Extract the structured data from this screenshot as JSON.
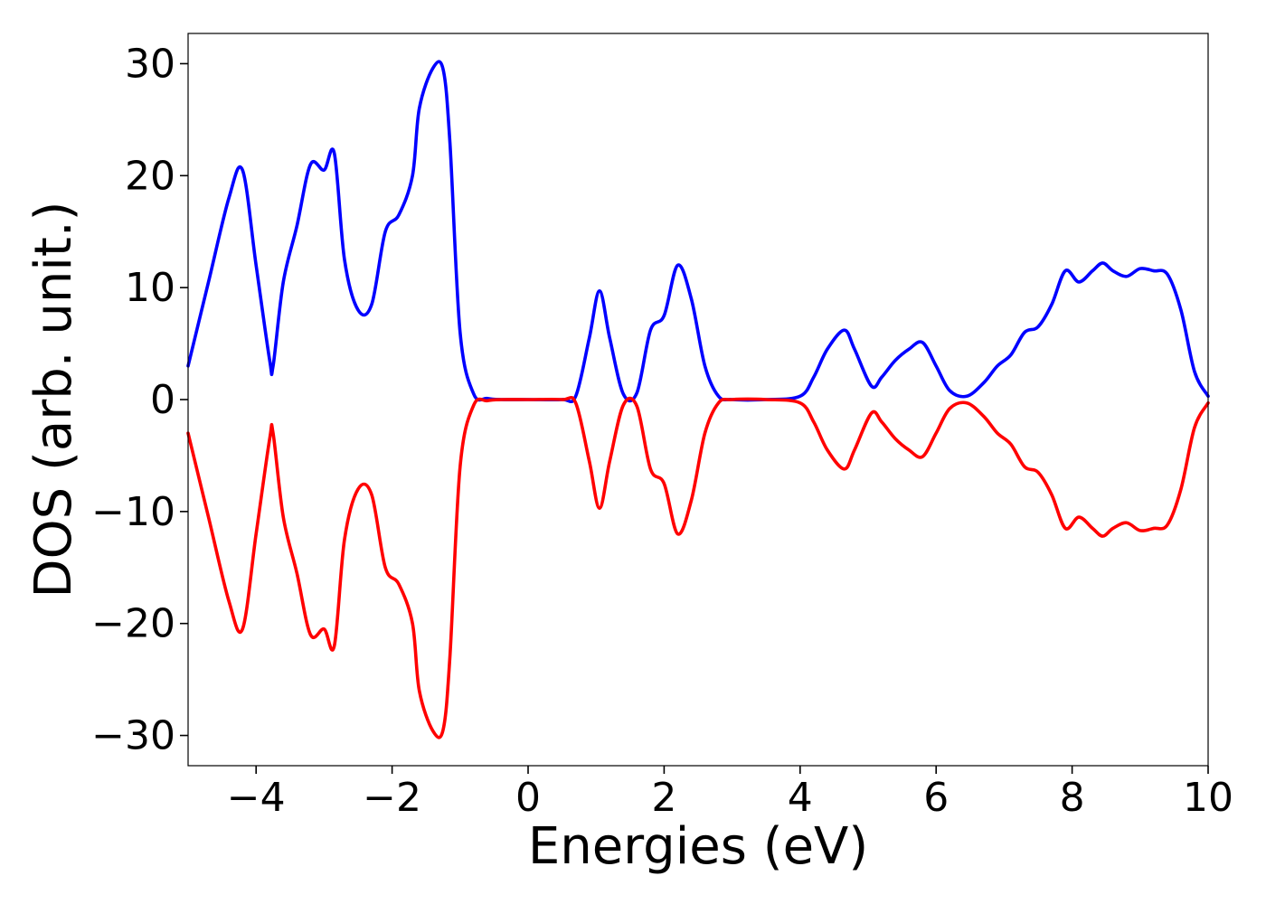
{
  "chart_data": {
    "type": "line",
    "title": "",
    "xlabel": "Energies (eV)",
    "ylabel": "DOS (arb. unit.)",
    "xlim": [
      -5,
      10
    ],
    "ylim": [
      -32.7,
      32.7
    ],
    "grid": false,
    "legend": "none",
    "x_ticks": [
      -4,
      -2,
      0,
      2,
      4,
      6,
      8,
      10
    ],
    "x_tick_labels": [
      "−4",
      "−2",
      "0",
      "2",
      "4",
      "6",
      "8",
      "10"
    ],
    "y_ticks": [
      30,
      20,
      10,
      0,
      -10,
      -20,
      -30
    ],
    "y_tick_labels": [
      "30",
      "20",
      "10",
      "0",
      "−10",
      "−20",
      "−30"
    ],
    "x": [
      -5.0,
      -4.7,
      -4.4,
      -4.2,
      -4.0,
      -3.8,
      -3.75,
      -3.6,
      -3.4,
      -3.2,
      -3.0,
      -2.85,
      -2.7,
      -2.5,
      -2.3,
      -2.1,
      -1.9,
      -1.7,
      -1.6,
      -1.4,
      -1.25,
      -1.15,
      -1.0,
      -0.8,
      -0.6,
      -0.4,
      0.0,
      0.5,
      0.7,
      0.9,
      1.05,
      1.2,
      1.4,
      1.6,
      1.8,
      2.0,
      2.2,
      2.4,
      2.6,
      2.8,
      3.0,
      3.5,
      4.0,
      4.2,
      4.4,
      4.65,
      4.8,
      5.05,
      5.2,
      5.4,
      5.6,
      5.8,
      6.0,
      6.2,
      6.45,
      6.7,
      6.9,
      7.1,
      7.3,
      7.5,
      7.7,
      7.9,
      8.1,
      8.3,
      8.45,
      8.6,
      8.8,
      9.0,
      9.2,
      9.4,
      9.6,
      9.8,
      10.0
    ],
    "series": [
      {
        "color": "#0000ff",
        "values": [
          3.0,
          10.5,
          18.0,
          20.5,
          12.0,
          3.5,
          3.0,
          10.5,
          15.5,
          21.0,
          20.5,
          22.0,
          12.5,
          8.0,
          8.5,
          15.0,
          16.5,
          20.0,
          26.0,
          29.6,
          29.5,
          23.0,
          6.0,
          0.5,
          0.1,
          0.0,
          0.0,
          0.0,
          0.3,
          5.5,
          9.7,
          5.5,
          0.5,
          0.6,
          6.2,
          7.5,
          12.0,
          9.0,
          3.0,
          0.3,
          0.0,
          0.0,
          0.3,
          2.0,
          4.5,
          6.2,
          4.5,
          1.2,
          2.0,
          3.5,
          4.5,
          5.1,
          3.0,
          0.8,
          0.3,
          1.5,
          3.0,
          4.0,
          6.0,
          6.5,
          8.5,
          11.5,
          10.5,
          11.5,
          12.2,
          11.5,
          11.0,
          11.7,
          11.5,
          11.2,
          8.0,
          2.5,
          0.3
        ]
      },
      {
        "color": "#ff0000",
        "values": [
          -3.0,
          -10.5,
          -18.0,
          -20.5,
          -12.0,
          -3.5,
          -3.0,
          -10.5,
          -15.5,
          -21.0,
          -20.5,
          -22.0,
          -12.5,
          -8.0,
          -8.5,
          -15.0,
          -16.5,
          -20.0,
          -26.0,
          -29.6,
          -29.5,
          -23.0,
          -6.0,
          -0.5,
          -0.1,
          0.0,
          0.0,
          0.0,
          -0.3,
          -5.5,
          -9.7,
          -5.5,
          -0.5,
          -0.6,
          -6.2,
          -7.5,
          -12.0,
          -9.0,
          -3.0,
          -0.3,
          0.0,
          0.0,
          -0.3,
          -2.0,
          -4.5,
          -6.2,
          -4.5,
          -1.2,
          -2.0,
          -3.5,
          -4.5,
          -5.1,
          -3.0,
          -0.8,
          -0.3,
          -1.5,
          -3.0,
          -4.0,
          -6.0,
          -6.5,
          -8.5,
          -11.5,
          -10.5,
          -11.5,
          -12.2,
          -11.5,
          -11.0,
          -11.7,
          -11.5,
          -11.2,
          -8.0,
          -2.5,
          -0.3
        ]
      }
    ]
  }
}
